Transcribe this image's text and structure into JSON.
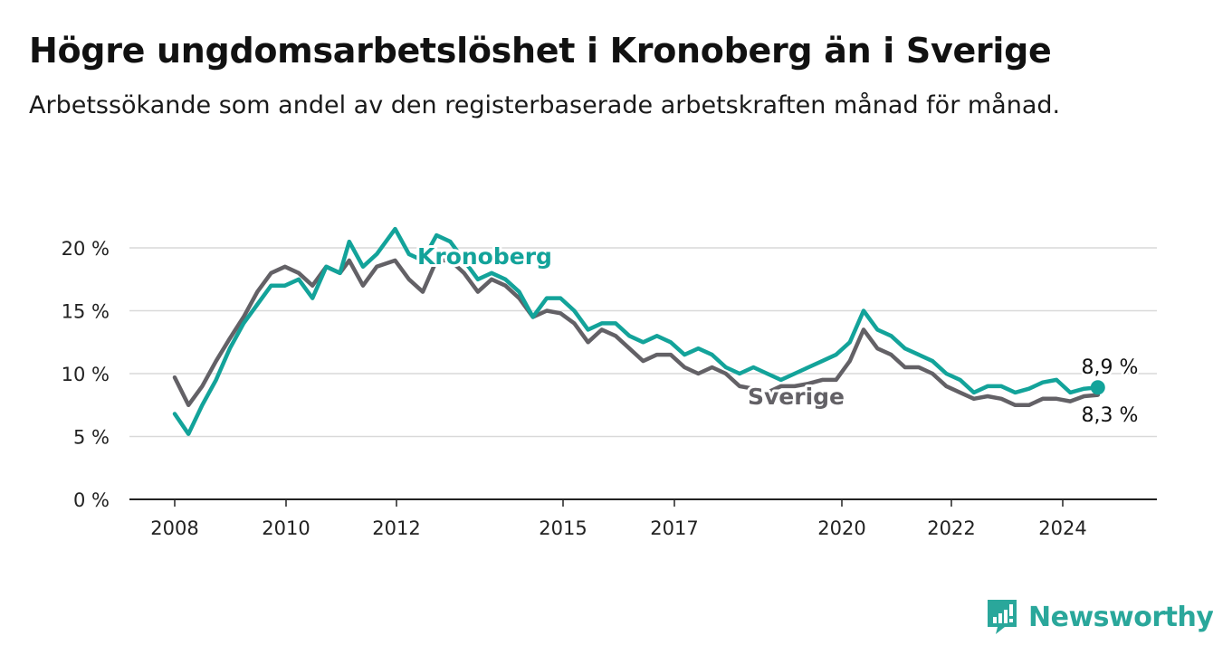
{
  "header": {
    "title": "Högre ungdomsarbetslöshet i Kronoberg än i Sverige",
    "subtitle": "Arbetssökande som andel av den registerbaserade arbetskraften månad för månad."
  },
  "brand": {
    "name": "Newsworthy",
    "color": "#2aa79b",
    "icon": "bar-chart-exclamation-icon"
  },
  "chart_data": {
    "type": "line",
    "title": "Högre ungdomsarbetslöshet i Kronoberg än i Sverige",
    "subtitle": "Arbetssökande som andel av den registerbaserade arbetskraften månad för månad.",
    "xlabel": "",
    "ylabel": "",
    "x_ticks": [
      "2008",
      "2010",
      "2012",
      "2015",
      "2017",
      "2020",
      "2022",
      "2024"
    ],
    "y_ticks": [
      "0 %",
      "5 %",
      "10 %",
      "15 %",
      "20 %"
    ],
    "ylim": [
      0,
      22
    ],
    "grid": "horizontal",
    "legend": "direct labels",
    "end_labels": {
      "Kronoberg": "8,9 %",
      "Sverige": "8,3 %"
    },
    "series": [
      {
        "name": "Kronoberg",
        "color": "#13a39a",
        "points": [
          [
            "2008-01",
            6.8
          ],
          [
            "2008-04",
            5.2
          ],
          [
            "2008-07",
            7.5
          ],
          [
            "2008-10",
            9.5
          ],
          [
            "2009-01",
            12.0
          ],
          [
            "2009-04",
            14.0
          ],
          [
            "2009-07",
            15.5
          ],
          [
            "2009-10",
            17.0
          ],
          [
            "2010-01",
            17.0
          ],
          [
            "2010-04",
            17.5
          ],
          [
            "2010-07",
            16.0
          ],
          [
            "2010-10",
            18.5
          ],
          [
            "2011-01",
            18.0
          ],
          [
            "2011-03",
            20.5
          ],
          [
            "2011-06",
            18.5
          ],
          [
            "2011-09",
            19.5
          ],
          [
            "2012-01",
            21.5
          ],
          [
            "2012-04",
            19.5
          ],
          [
            "2012-07",
            19.0
          ],
          [
            "2012-10",
            21.0
          ],
          [
            "2013-01",
            20.5
          ],
          [
            "2013-04",
            19.0
          ],
          [
            "2013-07",
            17.5
          ],
          [
            "2013-10",
            18.0
          ],
          [
            "2014-01",
            17.5
          ],
          [
            "2014-04",
            16.5
          ],
          [
            "2014-07",
            14.5
          ],
          [
            "2014-10",
            16.0
          ],
          [
            "2015-01",
            16.0
          ],
          [
            "2015-04",
            15.0
          ],
          [
            "2015-07",
            13.5
          ],
          [
            "2015-10",
            14.0
          ],
          [
            "2016-01",
            14.0
          ],
          [
            "2016-04",
            13.0
          ],
          [
            "2016-07",
            12.5
          ],
          [
            "2016-10",
            13.0
          ],
          [
            "2017-01",
            12.5
          ],
          [
            "2017-04",
            11.5
          ],
          [
            "2017-07",
            12.0
          ],
          [
            "2017-10",
            11.5
          ],
          [
            "2018-01",
            10.5
          ],
          [
            "2018-04",
            10.0
          ],
          [
            "2018-07",
            10.5
          ],
          [
            "2018-10",
            10.0
          ],
          [
            "2019-01",
            9.5
          ],
          [
            "2019-04",
            10.0
          ],
          [
            "2019-07",
            10.5
          ],
          [
            "2019-10",
            11.0
          ],
          [
            "2020-01",
            11.5
          ],
          [
            "2020-04",
            12.5
          ],
          [
            "2020-07",
            15.0
          ],
          [
            "2020-10",
            13.5
          ],
          [
            "2021-01",
            13.0
          ],
          [
            "2021-04",
            12.0
          ],
          [
            "2021-07",
            11.5
          ],
          [
            "2021-10",
            11.0
          ],
          [
            "2022-01",
            10.0
          ],
          [
            "2022-04",
            9.5
          ],
          [
            "2022-07",
            8.5
          ],
          [
            "2022-10",
            9.0
          ],
          [
            "2023-01",
            9.0
          ],
          [
            "2023-04",
            8.5
          ],
          [
            "2023-07",
            8.8
          ],
          [
            "2023-10",
            9.3
          ],
          [
            "2024-01",
            9.5
          ],
          [
            "2024-04",
            8.5
          ],
          [
            "2024-07",
            8.8
          ],
          [
            "2024-10",
            8.9
          ]
        ]
      },
      {
        "name": "Sverige",
        "color": "#636166",
        "points": [
          [
            "2008-01",
            9.7
          ],
          [
            "2008-04",
            7.5
          ],
          [
            "2008-07",
            9.0
          ],
          [
            "2008-10",
            11.0
          ],
          [
            "2009-01",
            12.8
          ],
          [
            "2009-04",
            14.5
          ],
          [
            "2009-07",
            16.5
          ],
          [
            "2009-10",
            18.0
          ],
          [
            "2010-01",
            18.5
          ],
          [
            "2010-04",
            18.0
          ],
          [
            "2010-07",
            17.0
          ],
          [
            "2010-10",
            18.5
          ],
          [
            "2011-01",
            18.0
          ],
          [
            "2011-03",
            19.0
          ],
          [
            "2011-06",
            17.0
          ],
          [
            "2011-09",
            18.5
          ],
          [
            "2012-01",
            19.0
          ],
          [
            "2012-04",
            17.5
          ],
          [
            "2012-07",
            16.5
          ],
          [
            "2012-10",
            19.0
          ],
          [
            "2013-01",
            19.0
          ],
          [
            "2013-04",
            18.0
          ],
          [
            "2013-07",
            16.5
          ],
          [
            "2013-10",
            17.5
          ],
          [
            "2014-01",
            17.0
          ],
          [
            "2014-04",
            16.0
          ],
          [
            "2014-07",
            14.5
          ],
          [
            "2014-10",
            15.0
          ],
          [
            "2015-01",
            14.8
          ],
          [
            "2015-04",
            14.0
          ],
          [
            "2015-07",
            12.5
          ],
          [
            "2015-10",
            13.5
          ],
          [
            "2016-01",
            13.0
          ],
          [
            "2016-04",
            12.0
          ],
          [
            "2016-07",
            11.0
          ],
          [
            "2016-10",
            11.5
          ],
          [
            "2017-01",
            11.5
          ],
          [
            "2017-04",
            10.5
          ],
          [
            "2017-07",
            10.0
          ],
          [
            "2017-10",
            10.5
          ],
          [
            "2018-01",
            10.0
          ],
          [
            "2018-04",
            9.0
          ],
          [
            "2018-07",
            8.8
          ],
          [
            "2018-10",
            8.5
          ],
          [
            "2019-01",
            9.0
          ],
          [
            "2019-04",
            9.0
          ],
          [
            "2019-07",
            9.2
          ],
          [
            "2019-10",
            9.5
          ],
          [
            "2020-01",
            9.5
          ],
          [
            "2020-04",
            11.0
          ],
          [
            "2020-07",
            13.5
          ],
          [
            "2020-10",
            12.0
          ],
          [
            "2021-01",
            11.5
          ],
          [
            "2021-04",
            10.5
          ],
          [
            "2021-07",
            10.5
          ],
          [
            "2021-10",
            10.0
          ],
          [
            "2022-01",
            9.0
          ],
          [
            "2022-04",
            8.5
          ],
          [
            "2022-07",
            8.0
          ],
          [
            "2022-10",
            8.2
          ],
          [
            "2023-01",
            8.0
          ],
          [
            "2023-04",
            7.5
          ],
          [
            "2023-07",
            7.5
          ],
          [
            "2023-10",
            8.0
          ],
          [
            "2024-01",
            8.0
          ],
          [
            "2024-04",
            7.8
          ],
          [
            "2024-07",
            8.2
          ],
          [
            "2024-10",
            8.3
          ]
        ]
      }
    ]
  }
}
